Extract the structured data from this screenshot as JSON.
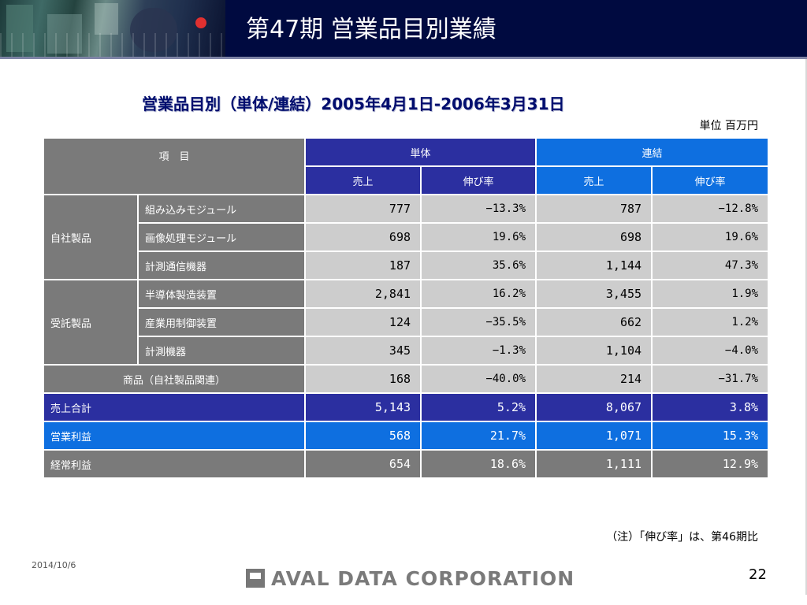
{
  "header": {
    "title": "第47期 営業品目別業績"
  },
  "subtitle": "営業品目別（単体/連結）2005年4月1日-2006年3月31日",
  "unit": "単位 百万円",
  "table": {
    "item_header": "項　目",
    "single_header": "単体",
    "consolidated_header": "連結",
    "sales_header": "売上",
    "growth_header": "伸び率",
    "groups": [
      {
        "label": "自社製品",
        "rows": [
          {
            "name": "組み込みモジュール",
            "single_sales": "777",
            "single_growth": "−13.3%",
            "cons_sales": "787",
            "cons_growth": "−12.8%"
          },
          {
            "name": "画像処理モジュール",
            "single_sales": "698",
            "single_growth": "19.6%",
            "cons_sales": "698",
            "cons_growth": "19.6%"
          },
          {
            "name": "計測通信機器",
            "single_sales": "187",
            "single_growth": "35.6%",
            "cons_sales": "1,144",
            "cons_growth": "47.3%"
          }
        ]
      },
      {
        "label": "受託製品",
        "rows": [
          {
            "name": "半導体製造装置",
            "single_sales": "2,841",
            "single_growth": "16.2%",
            "cons_sales": "3,455",
            "cons_growth": "1.9%"
          },
          {
            "name": "産業用制御装置",
            "single_sales": "124",
            "single_growth": "−35.5%",
            "cons_sales": "662",
            "cons_growth": "1.2%"
          },
          {
            "name": "計測機器",
            "single_sales": "345",
            "single_growth": "−1.3%",
            "cons_sales": "1,104",
            "cons_growth": "−4.0%"
          }
        ]
      }
    ],
    "merch": {
      "name": "商品（自社製品関連）",
      "single_sales": "168",
      "single_growth": "−40.0%",
      "cons_sales": "214",
      "cons_growth": "−31.7%"
    },
    "totals": [
      {
        "name": "売上合計",
        "single_sales": "5,143",
        "single_growth": "5.2%",
        "cons_sales": "8,067",
        "cons_growth": "3.8%"
      },
      {
        "name": "営業利益",
        "single_sales": "568",
        "single_growth": "21.7%",
        "cons_sales": "1,071",
        "cons_growth": "15.3%"
      },
      {
        "name": "経常利益",
        "single_sales": "654",
        "single_growth": "18.6%",
        "cons_sales": "1,111",
        "cons_growth": "12.9%"
      }
    ]
  },
  "note": "（注）「伸び率」は、第46期比",
  "footer": {
    "date": "2014/10/6",
    "logo_text": "AVAL DATA CORPORATION",
    "page_number": "22"
  }
}
